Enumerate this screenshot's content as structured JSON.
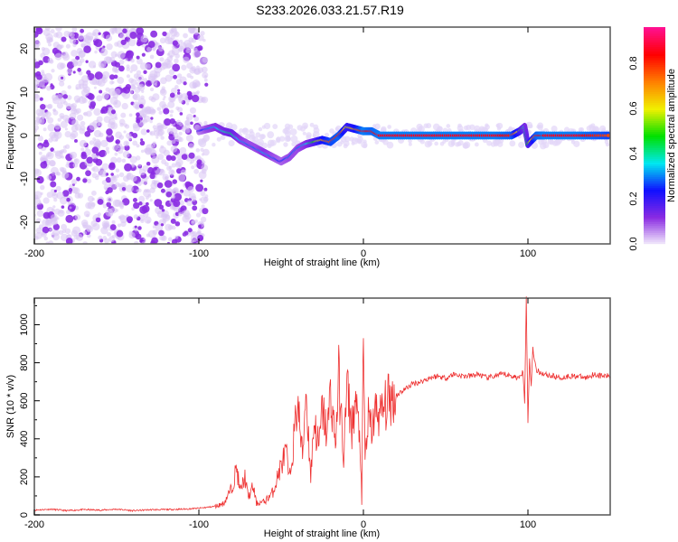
{
  "chart_data": [
    {
      "type": "heatmap",
      "title": "S233.2026.033.21.57.R19",
      "xlabel": "Height of straight line (km)",
      "ylabel": "Frequency (Hz)",
      "xlim": [
        -200,
        150
      ],
      "ylim": [
        -25,
        25
      ],
      "xticks": [
        -200,
        -100,
        0,
        100
      ],
      "yticks": [
        -20,
        -10,
        0,
        10,
        20
      ],
      "colorbar": {
        "label": "Normalized spectral amplitude",
        "range": [
          0,
          1
        ],
        "ticks": [
          "0.0",
          "0.2",
          "0.4",
          "0.6",
          "0.8"
        ],
        "colormap": [
          "#f4eefc",
          "#8a2be2",
          "#1010ff",
          "#00e8f0",
          "#00e000",
          "#f0f000",
          "#ff8000",
          "#ff0000",
          "#ff1090"
        ]
      },
      "ridge": {
        "x": [
          -100,
          -95,
          -90,
          -85,
          -80,
          -75,
          -70,
          -65,
          -60,
          -55,
          -50,
          -45,
          -40,
          -35,
          -30,
          -25,
          -20,
          -15,
          -10,
          -5,
          0,
          5,
          10,
          20,
          30,
          40,
          50,
          60,
          70,
          80,
          90,
          95,
          98,
          100,
          105,
          110,
          120,
          130,
          140,
          150
        ],
        "freq": [
          1,
          1.5,
          2,
          1,
          0.5,
          -1,
          -2,
          -3,
          -4,
          -5,
          -6,
          -5,
          -3,
          -2,
          -1.5,
          -1,
          -1.5,
          0,
          2,
          1.5,
          1,
          1,
          0,
          0,
          0,
          0,
          0,
          0,
          0,
          0,
          0,
          1,
          2,
          -2,
          0,
          0,
          0,
          0,
          0,
          0
        ],
        "amplitude": [
          0.2,
          0.3,
          0.35,
          0.4,
          0.45,
          0.35,
          0.3,
          0.3,
          0.35,
          0.3,
          0.25,
          0.3,
          0.3,
          0.35,
          0.5,
          0.7,
          0.8,
          0.85,
          0.6,
          0.7,
          0.9,
          0.85,
          0.9,
          0.9,
          0.9,
          0.9,
          0.9,
          0.9,
          0.9,
          0.9,
          0.85,
          0.6,
          0.4,
          0.5,
          0.85,
          0.9,
          0.9,
          0.9,
          0.85,
          0.8
        ]
      }
    },
    {
      "type": "line",
      "xlabel": "Height of straight line (km)",
      "ylabel": "SNR (10 * v/v)",
      "xlim": [
        -200,
        150
      ],
      "ylim": [
        0,
        1140
      ],
      "xticks": [
        -200,
        -100,
        0,
        100
      ],
      "yticks": [
        0,
        200,
        400,
        600,
        800,
        1000
      ],
      "color": "#ee3030",
      "x": [
        -200,
        -190,
        -180,
        -170,
        -160,
        -150,
        -140,
        -130,
        -120,
        -110,
        -100,
        -95,
        -90,
        -85,
        -80,
        -77,
        -75,
        -72,
        -70,
        -67,
        -65,
        -60,
        -55,
        -50,
        -47,
        -45,
        -42,
        -40,
        -37,
        -35,
        -32,
        -30,
        -27,
        -25,
        -22,
        -20,
        -17,
        -15,
        -12,
        -10,
        -7,
        -5,
        -2,
        -1,
        0,
        1,
        3,
        5,
        8,
        10,
        15,
        20,
        25,
        30,
        35,
        40,
        45,
        50,
        55,
        60,
        65,
        70,
        75,
        80,
        85,
        90,
        95,
        97,
        98,
        99,
        100,
        101,
        102,
        103,
        105,
        110,
        115,
        120,
        125,
        130,
        135,
        140,
        145,
        150
      ],
      "y": [
        25,
        30,
        22,
        28,
        25,
        30,
        22,
        27,
        28,
        30,
        35,
        40,
        45,
        60,
        140,
        250,
        120,
        200,
        90,
        150,
        60,
        70,
        120,
        260,
        330,
        180,
        420,
        600,
        300,
        670,
        200,
        500,
        350,
        560,
        420,
        650,
        380,
        720,
        300,
        680,
        450,
        600,
        400,
        50,
        930,
        300,
        500,
        450,
        560,
        520,
        600,
        630,
        660,
        690,
        700,
        720,
        730,
        720,
        740,
        730,
        730,
        740,
        720,
        730,
        740,
        730,
        720,
        760,
        600,
        1140,
        490,
        820,
        680,
        880,
        760,
        740,
        730,
        720,
        730,
        730,
        720,
        740,
        730,
        730
      ]
    }
  ]
}
